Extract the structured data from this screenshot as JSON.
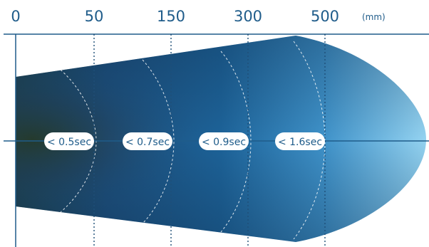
{
  "scale": {
    "ticks": [
      "0",
      "50",
      "150",
      "300",
      "500"
    ],
    "unit": "(mm)"
  },
  "zones": [
    {
      "label": "< 0.5sec"
    },
    {
      "label": "< 0.7sec"
    },
    {
      "label": "< 0.9sec"
    },
    {
      "label": "< 1.6sec"
    }
  ],
  "colors": {
    "axis": "#1f5c8a",
    "beam_dark": "#1e3f3a",
    "beam_mid": "#1b5f97",
    "beam_light": "#8ccdef",
    "label_bg": "#ffffff",
    "label_text": "#1f5c8a"
  }
}
